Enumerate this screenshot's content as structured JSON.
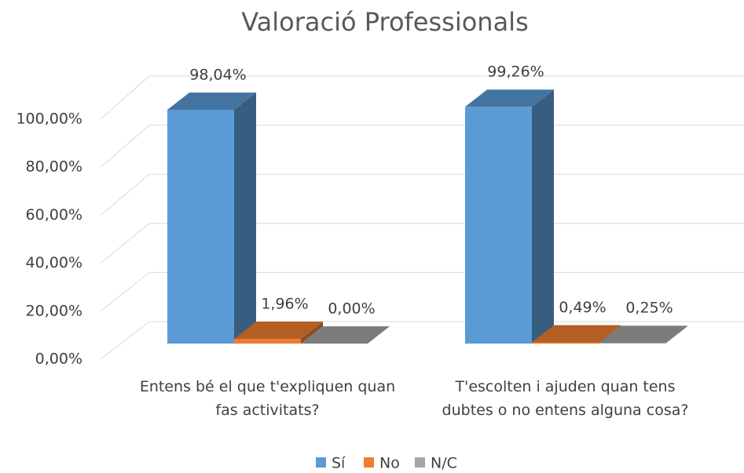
{
  "chart_data": {
    "type": "bar3d",
    "title": "Valoració Professionals",
    "categories": [
      "Entens bé el que t'expliquen quan fas activitats?",
      "T'escolten i ajuden quan tens dubtes o no entens alguna cosa?"
    ],
    "series": [
      {
        "name": "Sí",
        "color": "#5b9bd5",
        "values": [
          98.04,
          99.26
        ],
        "value_labels": [
          "98,04%",
          "99,26%"
        ]
      },
      {
        "name": "No",
        "color": "#ed7d31",
        "values": [
          1.96,
          0.49
        ],
        "value_labels": [
          "1,96%",
          "0,49%"
        ]
      },
      {
        "name": "N/C",
        "color": "#a5a5a5",
        "values": [
          0,
          0.25
        ],
        "value_labels": [
          "0,00%",
          "0,25%"
        ]
      }
    ],
    "ylim": [
      0,
      100
    ],
    "yticks": [
      {
        "value": 0,
        "label": "0,00%"
      },
      {
        "value": 20,
        "label": "20,00%"
      },
      {
        "value": 40,
        "label": "40,00%"
      },
      {
        "value": 60,
        "label": "60,00%"
      },
      {
        "value": 80,
        "label": "80,00%"
      },
      {
        "value": 100,
        "label": "100,00%"
      }
    ],
    "grid": true,
    "legend": "bottom"
  }
}
